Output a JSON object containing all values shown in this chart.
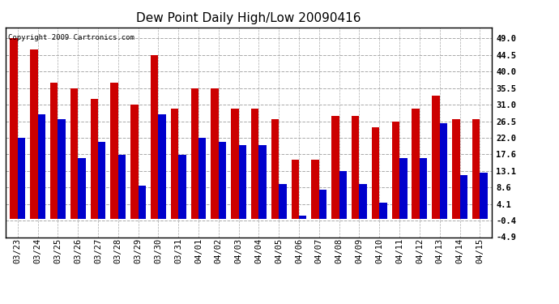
{
  "title": "Dew Point Daily High/Low 20090416",
  "copyright": "Copyright 2009 Cartronics.com",
  "categories": [
    "03/23",
    "03/24",
    "03/25",
    "03/26",
    "03/27",
    "03/28",
    "03/29",
    "03/30",
    "03/31",
    "04/01",
    "04/02",
    "04/03",
    "04/04",
    "04/05",
    "04/06",
    "04/07",
    "04/08",
    "04/09",
    "04/10",
    "04/11",
    "04/12",
    "04/13",
    "04/14",
    "04/15"
  ],
  "high_values": [
    49.0,
    46.0,
    37.0,
    35.5,
    32.5,
    37.0,
    31.0,
    44.5,
    30.0,
    35.5,
    35.5,
    30.0,
    30.0,
    27.0,
    16.0,
    16.0,
    28.0,
    28.0,
    25.0,
    26.5,
    30.0,
    33.5,
    27.0,
    27.0
  ],
  "low_values": [
    22.0,
    28.5,
    27.0,
    16.5,
    21.0,
    17.5,
    9.0,
    28.5,
    17.5,
    22.0,
    21.0,
    20.0,
    20.0,
    9.5,
    1.0,
    8.0,
    13.1,
    9.5,
    4.5,
    16.5,
    16.5,
    26.0,
    12.0,
    12.5
  ],
  "high_color": "#cc0000",
  "low_color": "#0000cc",
  "background_color": "#ffffff",
  "plot_bg_color": "#ffffff",
  "grid_color": "#aaaaaa",
  "yticks": [
    49.0,
    44.5,
    40.0,
    35.5,
    31.0,
    26.5,
    22.0,
    17.6,
    13.1,
    8.6,
    4.1,
    -0.4,
    -4.9
  ],
  "ylim": [
    -4.9,
    52.0
  ],
  "title_fontsize": 11,
  "tick_fontsize": 7.5,
  "bar_width": 0.38
}
